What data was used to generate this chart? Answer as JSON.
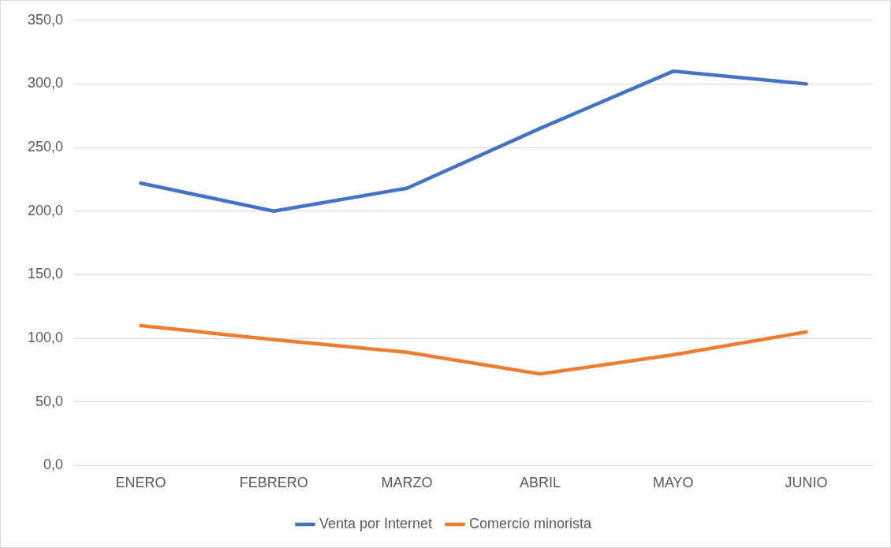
{
  "chart_data": {
    "type": "line",
    "categories": [
      "ENERO",
      "FEBRERO",
      "MARZO",
      "ABRIL",
      "MAYO",
      "JUNIO"
    ],
    "series": [
      {
        "name": "Venta por Internet",
        "color": "#4472c4",
        "values": [
          222,
          200,
          218,
          265,
          310,
          300
        ]
      },
      {
        "name": "Comercio minorista",
        "color": "#ed7d31",
        "values": [
          110,
          99,
          89,
          72,
          87,
          105
        ]
      }
    ],
    "ylim": [
      0,
      350
    ],
    "yticks": [
      {
        "value": 0,
        "label": "0,0"
      },
      {
        "value": 50,
        "label": "50,0"
      },
      {
        "value": 100,
        "label": "100,0"
      },
      {
        "value": 150,
        "label": "150,0"
      },
      {
        "value": 200,
        "label": "200,0"
      },
      {
        "value": 250,
        "label": "250,0"
      },
      {
        "value": 300,
        "label": "300,0"
      },
      {
        "value": 350,
        "label": "350,0"
      }
    ],
    "grid": "y",
    "legend": "bottom",
    "marker": "none",
    "line_style": "solid"
  }
}
